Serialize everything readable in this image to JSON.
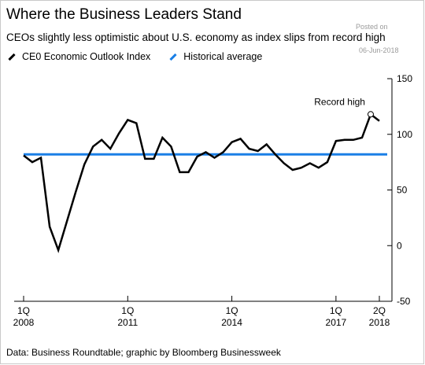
{
  "header": {
    "title": "Where the Business Leaders Stand",
    "subtitle": "CEOs slightly less optimistic about U.S. economy as index slips from record high",
    "posted_label": "Posted on",
    "posted_date": "06-Jun-2018"
  },
  "footer": {
    "source": "Data: Business Roundtable; graphic by Bloomberg Businessweek"
  },
  "colors": {
    "index_line": "#000000",
    "average_line": "#1a7fe6"
  },
  "chart_data": {
    "type": "line",
    "title": "Where the Business Leaders Stand",
    "subtitle": "CEOs slightly less optimistic about U.S. economy as index slips from record high",
    "xlabel": "",
    "ylabel": "",
    "ylim": [
      -50,
      150
    ],
    "yticks": [
      150,
      100,
      50,
      0,
      -50
    ],
    "grid": false,
    "legend_position": "top-left",
    "x_ticks": [
      {
        "q": 0,
        "line1": "1Q",
        "line2": "2008"
      },
      {
        "q": 12,
        "line1": "1Q",
        "line2": "2011"
      },
      {
        "q": 24,
        "line1": "1Q",
        "line2": "2014"
      },
      {
        "q": 36,
        "line1": "1Q",
        "line2": "2017"
      },
      {
        "q": 41,
        "line1": "2Q",
        "line2": "2018"
      }
    ],
    "series": [
      {
        "name": "CE0 Economic Outlook Index",
        "x": [
          "1Q 2008",
          "2Q 2008",
          "3Q 2008",
          "4Q 2008",
          "1Q 2009",
          "2Q 2009",
          "3Q 2009",
          "4Q 2009",
          "1Q 2010",
          "2Q 2010",
          "3Q 2010",
          "4Q 2010",
          "1Q 2011",
          "2Q 2011",
          "3Q 2011",
          "4Q 2011",
          "1Q 2012",
          "2Q 2012",
          "3Q 2012",
          "4Q 2012",
          "1Q 2013",
          "2Q 2013",
          "3Q 2013",
          "4Q 2013",
          "1Q 2014",
          "2Q 2014",
          "3Q 2014",
          "4Q 2014",
          "1Q 2015",
          "2Q 2015",
          "3Q 2015",
          "4Q 2015",
          "1Q 2016",
          "2Q 2016",
          "3Q 2016",
          "4Q 2016",
          "1Q 2017",
          "2Q 2017",
          "3Q 2017",
          "4Q 2017",
          "1Q 2018",
          "2Q 2018"
        ],
        "values": [
          81,
          75,
          79,
          17,
          -4,
          22,
          48,
          73,
          89,
          95,
          87,
          101,
          113,
          110,
          78,
          78,
          97,
          89,
          66,
          66,
          80,
          84,
          79,
          84,
          93,
          96,
          87,
          85,
          91,
          82,
          74,
          68,
          70,
          74,
          70,
          75,
          94,
          95,
          95,
          97,
          118,
          112
        ]
      },
      {
        "name": "Historical average",
        "value": 82
      }
    ],
    "annotations": [
      {
        "text": "Record high",
        "x": "1Q 2018",
        "y": 118
      }
    ]
  }
}
